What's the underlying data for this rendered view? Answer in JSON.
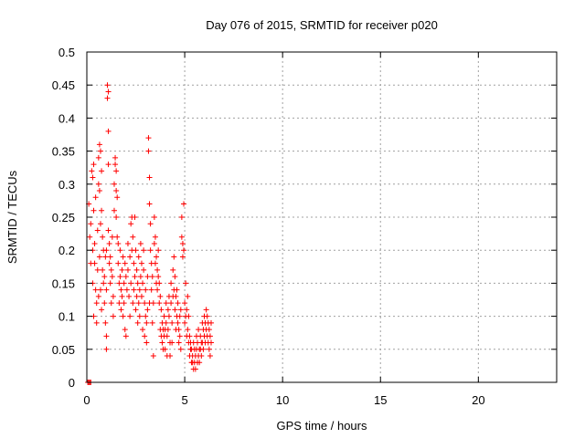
{
  "chart_data": {
    "type": "scatter",
    "title": "Day 076 of 2015, SRMTID for receiver p020",
    "xlabel": "GPS time / hours",
    "ylabel": "SRMTID / TECUs",
    "xlim": [
      0,
      24
    ],
    "ylim": [
      0,
      0.5
    ],
    "xticks": [
      0,
      5,
      10,
      15,
      20
    ],
    "yticks": [
      0,
      0.05,
      0.1,
      0.15,
      0.2,
      0.25,
      0.3,
      0.35,
      0.4,
      0.45,
      0.5
    ],
    "xtick_labels": [
      "0",
      "5",
      "10",
      "15",
      "20"
    ],
    "ytick_labels": [
      "0",
      "0.05",
      "0.1",
      "0.15",
      "0.2",
      "0.25",
      "0.3",
      "0.35",
      "0.4",
      "0.45",
      "0.5"
    ],
    "grid": true,
    "marker": "+",
    "color": "#ff0000",
    "series": [
      {
        "name": "SRMTID",
        "points": [
          [
            0.05,
            0.0
          ],
          [
            0.1,
            0.0
          ],
          [
            0.15,
            0.0
          ],
          [
            0.2,
            0.0
          ],
          [
            0.1,
            0.27
          ],
          [
            0.15,
            0.22
          ],
          [
            0.2,
            0.24
          ],
          [
            0.2,
            0.18
          ],
          [
            0.25,
            0.32
          ],
          [
            0.3,
            0.31
          ],
          [
            0.3,
            0.2
          ],
          [
            0.3,
            0.15
          ],
          [
            0.35,
            0.33
          ],
          [
            0.35,
            0.26
          ],
          [
            0.35,
            0.1
          ],
          [
            0.4,
            0.21
          ],
          [
            0.4,
            0.18
          ],
          [
            0.45,
            0.28
          ],
          [
            0.45,
            0.14
          ],
          [
            0.5,
            0.12
          ],
          [
            0.5,
            0.09
          ],
          [
            0.55,
            0.23
          ],
          [
            0.55,
            0.17
          ],
          [
            0.6,
            0.34
          ],
          [
            0.6,
            0.3
          ],
          [
            0.6,
            0.13
          ],
          [
            0.65,
            0.36
          ],
          [
            0.65,
            0.29
          ],
          [
            0.65,
            0.19
          ],
          [
            0.7,
            0.35
          ],
          [
            0.7,
            0.24
          ],
          [
            0.7,
            0.14
          ],
          [
            0.75,
            0.32
          ],
          [
            0.75,
            0.26
          ],
          [
            0.75,
            0.11
          ],
          [
            0.8,
            0.22
          ],
          [
            0.8,
            0.17
          ],
          [
            0.85,
            0.2
          ],
          [
            0.85,
            0.15
          ],
          [
            0.9,
            0.16
          ],
          [
            0.9,
            0.12
          ],
          [
            0.95,
            0.19
          ],
          [
            0.95,
            0.09
          ],
          [
            1.0,
            0.05
          ],
          [
            1.0,
            0.07
          ],
          [
            1.0,
            0.14
          ],
          [
            1.0,
            0.2
          ],
          [
            1.05,
            0.45
          ],
          [
            1.05,
            0.43
          ],
          [
            1.1,
            0.44
          ],
          [
            1.1,
            0.38
          ],
          [
            1.1,
            0.33
          ],
          [
            1.1,
            0.23
          ],
          [
            1.15,
            0.21
          ],
          [
            1.15,
            0.18
          ],
          [
            1.2,
            0.19
          ],
          [
            1.2,
            0.15
          ],
          [
            1.25,
            0.17
          ],
          [
            1.25,
            0.12
          ],
          [
            1.3,
            0.22
          ],
          [
            1.3,
            0.16
          ],
          [
            1.35,
            0.1
          ],
          [
            1.35,
            0.13
          ],
          [
            1.4,
            0.3
          ],
          [
            1.4,
            0.26
          ],
          [
            1.45,
            0.34
          ],
          [
            1.45,
            0.33
          ],
          [
            1.5,
            0.32
          ],
          [
            1.5,
            0.29
          ],
          [
            1.5,
            0.25
          ],
          [
            1.55,
            0.28
          ],
          [
            1.55,
            0.22
          ],
          [
            1.6,
            0.21
          ],
          [
            1.6,
            0.18
          ],
          [
            1.65,
            0.15
          ],
          [
            1.65,
            0.12
          ],
          [
            1.7,
            0.2
          ],
          [
            1.7,
            0.16
          ],
          [
            1.75,
            0.14
          ],
          [
            1.75,
            0.11
          ],
          [
            1.8,
            0.17
          ],
          [
            1.8,
            0.13
          ],
          [
            1.85,
            0.19
          ],
          [
            1.85,
            0.1
          ],
          [
            1.9,
            0.15
          ],
          [
            1.9,
            0.12
          ],
          [
            1.95,
            0.18
          ],
          [
            1.95,
            0.08
          ],
          [
            2.0,
            0.16
          ],
          [
            2.0,
            0.07
          ],
          [
            2.05,
            0.14
          ],
          [
            2.1,
            0.21
          ],
          [
            2.1,
            0.17
          ],
          [
            2.15,
            0.13
          ],
          [
            2.2,
            0.19
          ],
          [
            2.2,
            0.1
          ],
          [
            2.25,
            0.24
          ],
          [
            2.25,
            0.15
          ],
          [
            2.3,
            0.25
          ],
          [
            2.3,
            0.2
          ],
          [
            2.35,
            0.22
          ],
          [
            2.35,
            0.12
          ],
          [
            2.4,
            0.18
          ],
          [
            2.4,
            0.14
          ],
          [
            2.45,
            0.25
          ],
          [
            2.45,
            0.16
          ],
          [
            2.5,
            0.2
          ],
          [
            2.5,
            0.11
          ],
          [
            2.55,
            0.17
          ],
          [
            2.55,
            0.13
          ],
          [
            2.6,
            0.15
          ],
          [
            2.6,
            0.09
          ],
          [
            2.65,
            0.19
          ],
          [
            2.65,
            0.12
          ],
          [
            2.7,
            0.14
          ],
          [
            2.7,
            0.1
          ],
          [
            2.75,
            0.21
          ],
          [
            2.75,
            0.16
          ],
          [
            2.8,
            0.18
          ],
          [
            2.8,
            0.13
          ],
          [
            2.85,
            0.15
          ],
          [
            2.85,
            0.08
          ],
          [
            2.9,
            0.2
          ],
          [
            2.9,
            0.17
          ],
          [
            2.95,
            0.12
          ],
          [
            2.95,
            0.07
          ],
          [
            3.0,
            0.14
          ],
          [
            3.0,
            0.1
          ],
          [
            3.05,
            0.09
          ],
          [
            3.05,
            0.06
          ],
          [
            3.1,
            0.16
          ],
          [
            3.1,
            0.11
          ],
          [
            3.15,
            0.37
          ],
          [
            3.15,
            0.35
          ],
          [
            3.2,
            0.31
          ],
          [
            3.2,
            0.27
          ],
          [
            3.2,
            0.12
          ],
          [
            3.25,
            0.24
          ],
          [
            3.25,
            0.2
          ],
          [
            3.3,
            0.18
          ],
          [
            3.3,
            0.14
          ],
          [
            3.35,
            0.16
          ],
          [
            3.35,
            0.09
          ],
          [
            3.4,
            0.12
          ],
          [
            3.4,
            0.04
          ],
          [
            3.45,
            0.25
          ],
          [
            3.45,
            0.21
          ],
          [
            3.5,
            0.22
          ],
          [
            3.5,
            0.18
          ],
          [
            3.55,
            0.19
          ],
          [
            3.55,
            0.15
          ],
          [
            3.6,
            0.17
          ],
          [
            3.6,
            0.14
          ],
          [
            3.65,
            0.2
          ],
          [
            3.65,
            0.16
          ],
          [
            3.7,
            0.15
          ],
          [
            3.7,
            0.12
          ],
          [
            3.75,
            0.13
          ],
          [
            3.75,
            0.08
          ],
          [
            3.8,
            0.11
          ],
          [
            3.8,
            0.07
          ],
          [
            3.85,
            0.09
          ],
          [
            3.85,
            0.06
          ],
          [
            3.9,
            0.08
          ],
          [
            3.9,
            0.05
          ],
          [
            3.95,
            0.1
          ],
          [
            3.95,
            0.07
          ],
          [
            4.0,
            0.08
          ],
          [
            4.0,
            0.05
          ],
          [
            4.05,
            0.12
          ],
          [
            4.05,
            0.09
          ],
          [
            4.1,
            0.07
          ],
          [
            4.1,
            0.04
          ],
          [
            4.15,
            0.11
          ],
          [
            4.15,
            0.08
          ],
          [
            4.2,
            0.13
          ],
          [
            4.2,
            0.1
          ],
          [
            4.25,
            0.06
          ],
          [
            4.25,
            0.04
          ],
          [
            4.3,
            0.15
          ],
          [
            4.3,
            0.12
          ],
          [
            4.35,
            0.09
          ],
          [
            4.35,
            0.06
          ],
          [
            4.4,
            0.17
          ],
          [
            4.4,
            0.13
          ],
          [
            4.45,
            0.19
          ],
          [
            4.45,
            0.14
          ],
          [
            4.5,
            0.16
          ],
          [
            4.5,
            0.11
          ],
          [
            4.55,
            0.13
          ],
          [
            4.55,
            0.08
          ],
          [
            4.6,
            0.14
          ],
          [
            4.6,
            0.1
          ],
          [
            4.65,
            0.12
          ],
          [
            4.65,
            0.09
          ],
          [
            4.7,
            0.08
          ],
          [
            4.7,
            0.06
          ],
          [
            4.75,
            0.1
          ],
          [
            4.75,
            0.07
          ],
          [
            4.8,
            0.11
          ],
          [
            4.8,
            0.05
          ],
          [
            4.85,
            0.25
          ],
          [
            4.85,
            0.22
          ],
          [
            4.9,
            0.21
          ],
          [
            4.9,
            0.19
          ],
          [
            4.95,
            0.27
          ],
          [
            4.95,
            0.2
          ],
          [
            5.0,
            0.12
          ],
          [
            5.0,
            0.09
          ],
          [
            5.05,
            0.15
          ],
          [
            5.05,
            0.1
          ],
          [
            5.1,
            0.11
          ],
          [
            5.1,
            0.07
          ],
          [
            5.15,
            0.13
          ],
          [
            5.15,
            0.08
          ],
          [
            5.2,
            0.1
          ],
          [
            5.2,
            0.06
          ],
          [
            5.25,
            0.07
          ],
          [
            5.25,
            0.04
          ],
          [
            5.3,
            0.06
          ],
          [
            5.3,
            0.05
          ],
          [
            5.35,
            0.05
          ],
          [
            5.35,
            0.03
          ],
          [
            5.4,
            0.04
          ],
          [
            5.4,
            0.03
          ],
          [
            5.45,
            0.06
          ],
          [
            5.45,
            0.02
          ],
          [
            5.5,
            0.05
          ],
          [
            5.5,
            0.03
          ],
          [
            5.55,
            0.04
          ],
          [
            5.55,
            0.02
          ],
          [
            5.6,
            0.07
          ],
          [
            5.6,
            0.05
          ],
          [
            5.65,
            0.06
          ],
          [
            5.65,
            0.03
          ],
          [
            5.7,
            0.08
          ],
          [
            5.7,
            0.04
          ],
          [
            5.75,
            0.05
          ],
          [
            5.75,
            0.03
          ],
          [
            5.8,
            0.07
          ],
          [
            5.8,
            0.05
          ],
          [
            5.85,
            0.06
          ],
          [
            5.85,
            0.04
          ],
          [
            5.9,
            0.09
          ],
          [
            5.9,
            0.06
          ],
          [
            5.95,
            0.08
          ],
          [
            5.95,
            0.05
          ],
          [
            6.0,
            0.1
          ],
          [
            6.0,
            0.07
          ],
          [
            6.05,
            0.09
          ],
          [
            6.05,
            0.06
          ],
          [
            6.1,
            0.11
          ],
          [
            6.1,
            0.08
          ],
          [
            6.15,
            0.1
          ],
          [
            6.15,
            0.07
          ],
          [
            6.2,
            0.09
          ],
          [
            6.2,
            0.06
          ],
          [
            6.25,
            0.08
          ],
          [
            6.25,
            0.05
          ],
          [
            6.3,
            0.07
          ],
          [
            6.3,
            0.04
          ],
          [
            6.35,
            0.09
          ],
          [
            6.35,
            0.06
          ]
        ]
      }
    ]
  }
}
